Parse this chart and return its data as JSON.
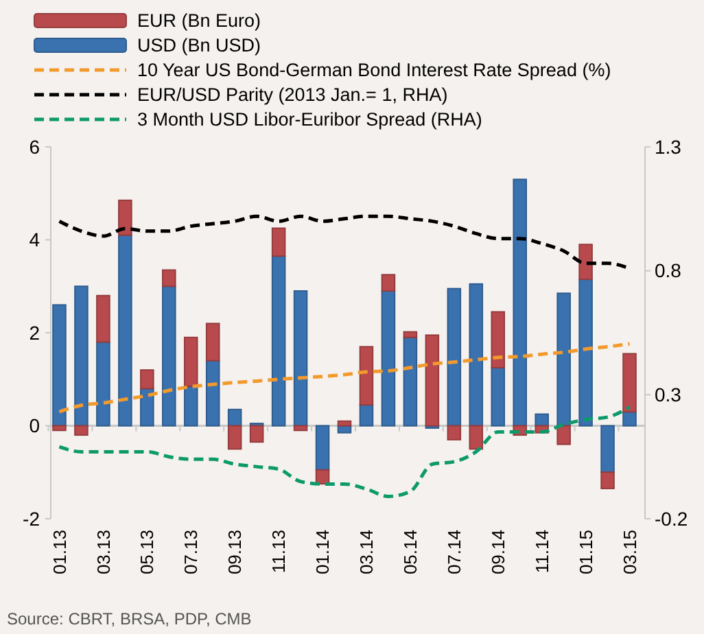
{
  "chart_data": {
    "type": "bar",
    "stacked": true,
    "legend": "top",
    "line_style": "dashed",
    "categories": [
      "01.13",
      null,
      "03.13",
      null,
      "05.13",
      null,
      "07.13",
      null,
      "09.13",
      null,
      "11.13",
      null,
      "01.14",
      null,
      "03.14",
      null,
      "05.14",
      null,
      "07.14",
      null,
      "09.14",
      null,
      "11.14",
      null,
      "01.15",
      null,
      "03.15"
    ],
    "ylim": [
      -2,
      6
    ],
    "yticks": [
      -2,
      0,
      2,
      4,
      6
    ],
    "y2lim": [
      -0.2,
      1.3
    ],
    "y2ticks": [
      -0.2,
      0.3,
      0.8,
      1.3
    ],
    "series": [
      {
        "name": "USD (Bn USD)",
        "color": "#3a72b0",
        "values": [
          2.6,
          3.0,
          1.8,
          4.1,
          0.8,
          3.0,
          0.85,
          1.4,
          0.35,
          0.05,
          3.65,
          2.9,
          -0.95,
          -0.15,
          0.45,
          2.9,
          1.9,
          -0.05,
          2.95,
          3.05,
          1.25,
          5.3,
          0.25,
          2.85,
          3.15,
          -1.0,
          0.3
        ]
      },
      {
        "name": "EUR (Bn Euro)",
        "color": "#b84a4d",
        "values": [
          -0.1,
          -0.2,
          1.0,
          0.75,
          0.4,
          0.35,
          1.05,
          0.8,
          -0.5,
          -0.35,
          0.6,
          -0.1,
          -0.3,
          0.1,
          1.25,
          0.35,
          0.12,
          1.95,
          -0.3,
          -0.5,
          1.2,
          -0.2,
          -0.15,
          -0.4,
          0.75,
          -0.35,
          1.25
        ]
      },
      {
        "name": "10 Year US Bond-German Bond Interest Rate Spread (%)",
        "type": "line",
        "color": "#f39a2c",
        "values": [
          0.3,
          0.44,
          0.49,
          0.57,
          0.65,
          0.76,
          0.84,
          0.89,
          0.93,
          0.96,
          1.0,
          1.03,
          1.06,
          1.1,
          1.16,
          1.18,
          1.25,
          1.33,
          1.37,
          1.42,
          1.47,
          1.49,
          1.54,
          1.58,
          1.65,
          1.7,
          1.76
        ]
      },
      {
        "name": "EUR/USD Parity (2013 Jan.= 1, RHA)",
        "type": "line",
        "axis": "y2",
        "color": "#000000",
        "values": [
          1.0,
          0.96,
          0.94,
          0.97,
          0.96,
          0.96,
          0.98,
          0.99,
          1.0,
          1.02,
          1.0,
          1.02,
          1.0,
          1.01,
          1.02,
          1.02,
          1.01,
          1.0,
          0.98,
          0.95,
          0.93,
          0.93,
          0.91,
          0.88,
          0.83,
          0.83,
          0.81
        ]
      },
      {
        "name": "3 Month USD Libor-Euribor Spread (RHA)",
        "type": "line",
        "axis": "y2",
        "color": "#0d9a6a",
        "values": [
          0.09,
          0.07,
          0.07,
          0.07,
          0.07,
          0.05,
          0.04,
          0.04,
          0.02,
          0.01,
          0.0,
          -0.05,
          -0.06,
          -0.06,
          -0.08,
          -0.11,
          -0.09,
          0.02,
          0.03,
          0.07,
          0.15,
          0.15,
          0.15,
          0.18,
          0.2,
          0.21,
          0.25
        ]
      }
    ],
    "annotations": [
      "Source: CBRT, BRSA, PDP, CMB"
    ]
  }
}
